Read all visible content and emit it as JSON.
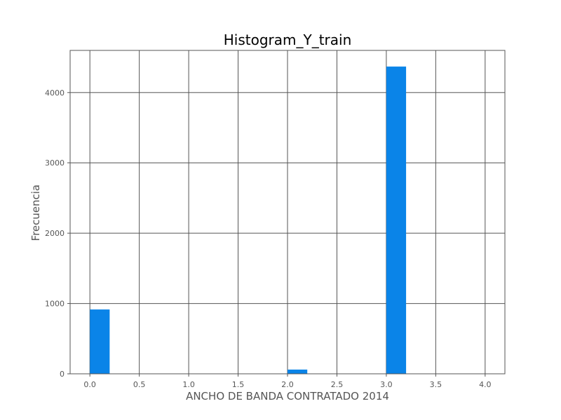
{
  "chart_data": {
    "type": "bar",
    "title": "Histogram_Y_train",
    "xlabel": "ANCHO DE BANDA CONTRATADO 2014",
    "ylabel": "Frecuencia",
    "xlim": [
      -0.2,
      4.2
    ],
    "ylim": [
      0,
      4600
    ],
    "xticks": [
      0.0,
      0.5,
      1.0,
      1.5,
      2.0,
      2.5,
      3.0,
      3.5,
      4.0
    ],
    "xtick_labels": [
      "0.0",
      "0.5",
      "1.0",
      "1.5",
      "2.0",
      "2.5",
      "3.0",
      "3.5",
      "4.0"
    ],
    "yticks": [
      0,
      1000,
      2000,
      3000,
      4000
    ],
    "ytick_labels": [
      "0",
      "1000",
      "2000",
      "3000",
      "4000"
    ],
    "grid": true,
    "bar_color": "#0a84e8",
    "grid_color": "#555555",
    "bins": [
      {
        "start": 0.0,
        "end": 0.2,
        "value": 915
      },
      {
        "start": 2.0,
        "end": 2.2,
        "value": 60
      },
      {
        "start": 3.0,
        "end": 3.2,
        "value": 4370
      }
    ]
  }
}
